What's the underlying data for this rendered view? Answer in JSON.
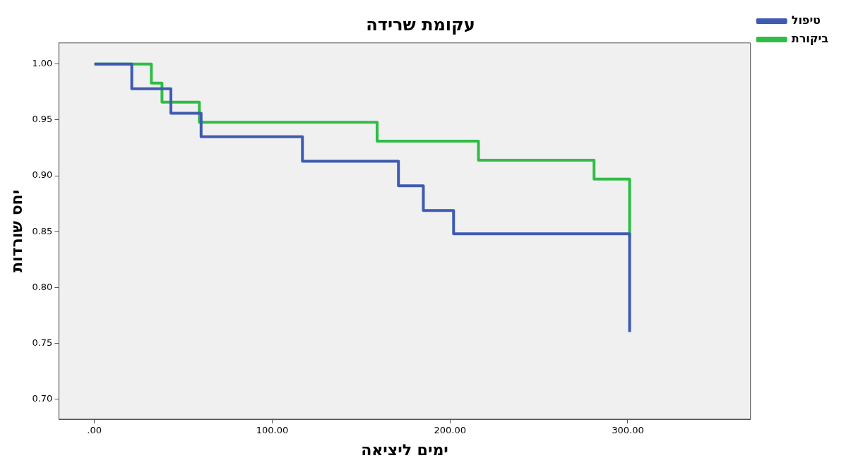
{
  "chart_data": {
    "type": "step",
    "title": "עקומת שרידה",
    "xlabel": "ימים ליציאה",
    "ylabel": "יחס שורדות",
    "xlim": [
      -20,
      369
    ],
    "ylim": [
      0.682,
      1.019
    ],
    "xticks": [
      {
        "value": 0,
        "label": ".00"
      },
      {
        "value": 100,
        "label": "100.00"
      },
      {
        "value": 200,
        "label": "200.00"
      },
      {
        "value": 300,
        "label": "300.00"
      }
    ],
    "yticks": [
      {
        "value": 0.7,
        "label": "0.70"
      },
      {
        "value": 0.75,
        "label": "0.75"
      },
      {
        "value": 0.8,
        "label": "0.80"
      },
      {
        "value": 0.85,
        "label": "0.85"
      },
      {
        "value": 0.9,
        "label": "0.90"
      },
      {
        "value": 0.95,
        "label": "0.95"
      },
      {
        "value": 1,
        "label": "1.00"
      }
    ],
    "grid": false,
    "legend": "top right",
    "marker": "none",
    "line_style": "solid",
    "series": [
      {
        "name": "טיפול",
        "color": "#3f5bb0",
        "x": [
          0,
          21,
          43,
          60,
          117,
          171,
          185,
          202,
          301
        ],
        "values": [
          1,
          0.978,
          0.956,
          0.935,
          0.913,
          0.891,
          0.869,
          0.848,
          0.76
        ]
      },
      {
        "name": "ביקורת",
        "color": "#2fbd45",
        "x": [
          0,
          32,
          38,
          59,
          159,
          216,
          281,
          301
        ],
        "values": [
          1,
          0.983,
          0.966,
          0.948,
          0.931,
          0.914,
          0.897,
          0.845
        ]
      }
    ]
  }
}
